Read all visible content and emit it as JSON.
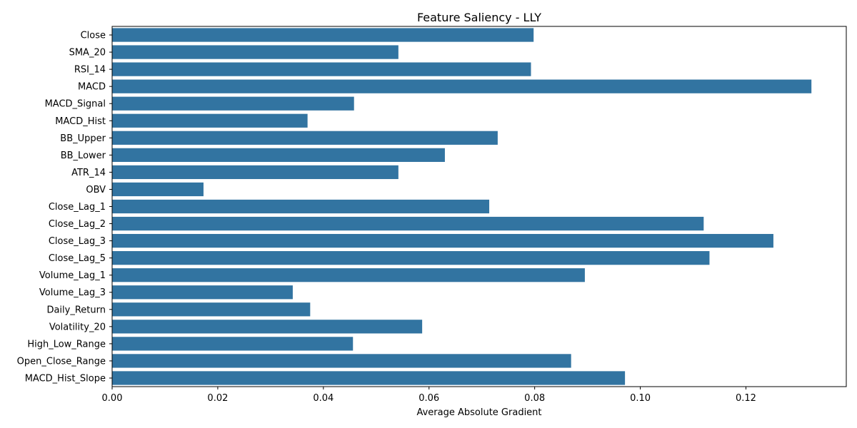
{
  "chart_data": {
    "type": "bar",
    "orientation": "horizontal",
    "title": "Feature Saliency - LLY",
    "xlabel": "Average Absolute Gradient",
    "ylabel": "",
    "xlim": [
      0.0,
      0.139
    ],
    "xticks": [
      0.0,
      0.02,
      0.04,
      0.06,
      0.08,
      0.1,
      0.12
    ],
    "xtick_labels": [
      "0.00",
      "0.02",
      "0.04",
      "0.06",
      "0.08",
      "0.10",
      "0.12"
    ],
    "bar_color": "#3274a1",
    "grid": false,
    "categories": [
      "Close",
      "SMA_20",
      "RSI_14",
      "MACD",
      "MACD_Signal",
      "MACD_Hist",
      "BB_Upper",
      "BB_Lower",
      "ATR_14",
      "OBV",
      "Close_Lag_1",
      "Close_Lag_2",
      "Close_Lag_3",
      "Close_Lag_5",
      "Volume_Lag_1",
      "Volume_Lag_3",
      "Daily_Return",
      "Volatility_20",
      "High_Low_Range",
      "Open_Close_Range",
      "MACD_Hist_Slope"
    ],
    "values": [
      0.0798,
      0.0542,
      0.0793,
      0.1324,
      0.0458,
      0.037,
      0.073,
      0.063,
      0.0542,
      0.0173,
      0.0714,
      0.112,
      0.1252,
      0.1131,
      0.0895,
      0.0342,
      0.0375,
      0.0587,
      0.0456,
      0.0869,
      0.0971
    ]
  }
}
